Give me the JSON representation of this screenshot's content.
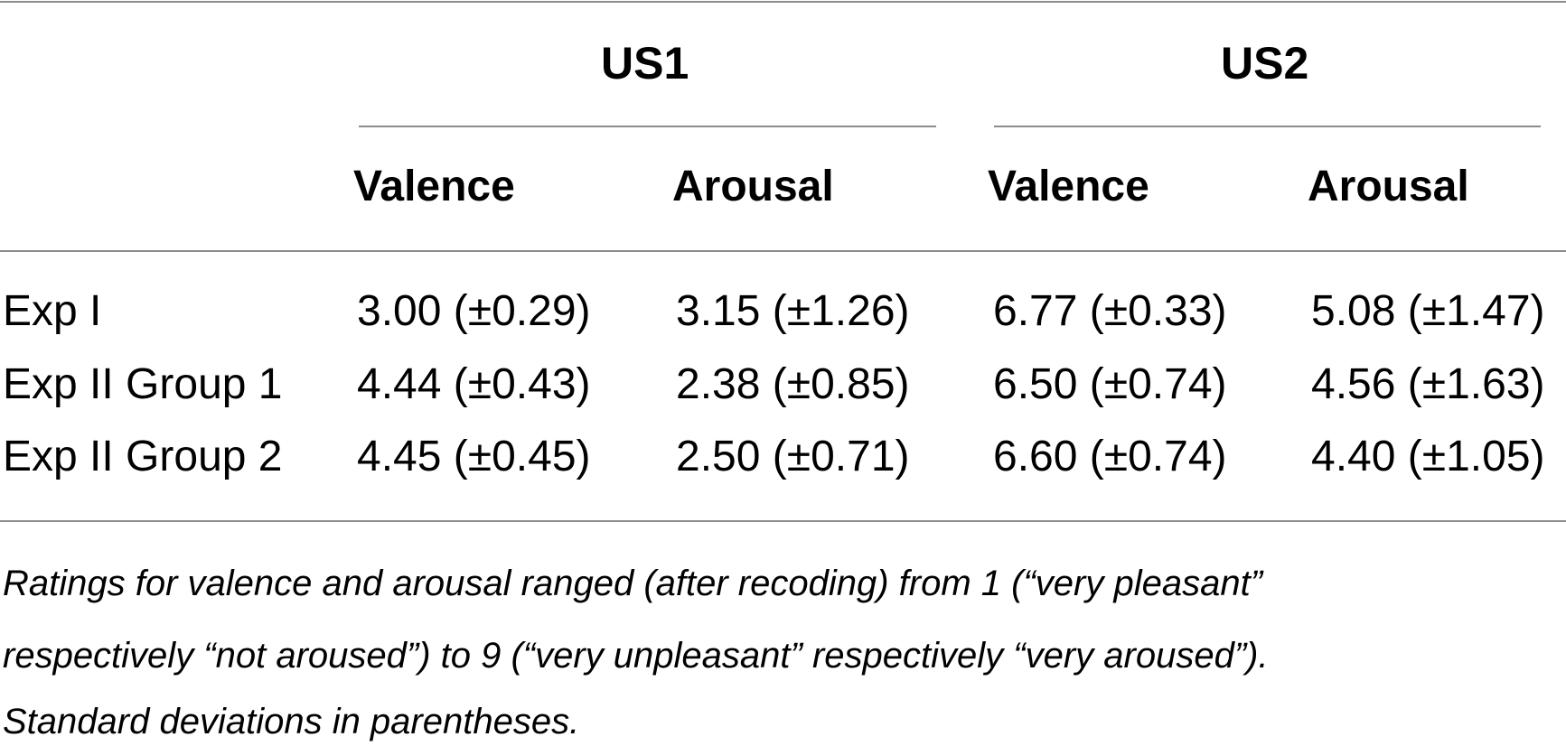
{
  "table": {
    "groups": [
      {
        "label": "US1"
      },
      {
        "label": "US2"
      }
    ],
    "columns": [
      "Valence",
      "Arousal",
      "Valence",
      "Arousal"
    ],
    "rows": [
      {
        "label": "Exp I",
        "cells": [
          "3.00 (±0.29)",
          "3.15 (±1.26)",
          "6.77 (±0.33)",
          "5.08 (±1.47)"
        ]
      },
      {
        "label": "Exp II Group 1",
        "cells": [
          "4.44 (±0.43)",
          "2.38 (±0.85)",
          "6.50 (±0.74)",
          "4.56 (±1.63)"
        ]
      },
      {
        "label": "Exp II Group 2",
        "cells": [
          "4.45 (±0.45)",
          "2.50 (±0.71)",
          "6.60 (±0.74)",
          "4.40 (±1.05)"
        ]
      }
    ]
  },
  "footnote": {
    "line1": "Ratings for valence and arousal ranged (after recoding) from 1 (“very pleasant”",
    "line2": "respectively “not aroused”) to 9 (“very unpleasant” respectively “very aroused”).",
    "line3": "Standard deviations in parentheses."
  }
}
